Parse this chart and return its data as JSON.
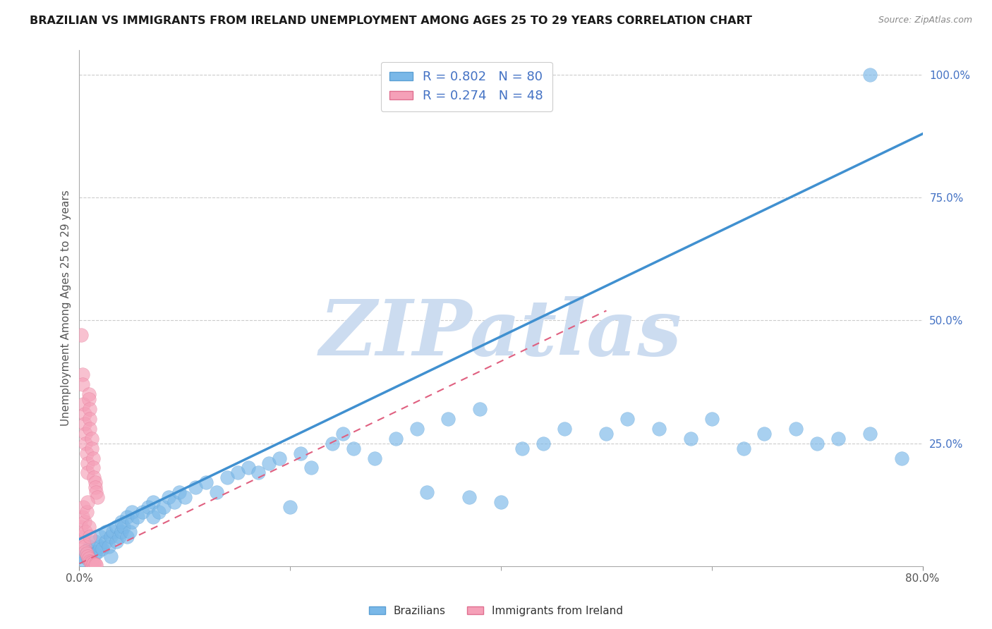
{
  "title": "BRAZILIAN VS IMMIGRANTS FROM IRELAND UNEMPLOYMENT AMONG AGES 25 TO 29 YEARS CORRELATION CHART",
  "source": "Source: ZipAtlas.com",
  "ylabel": "Unemployment Among Ages 25 to 29 years",
  "xlim": [
    0.0,
    0.8
  ],
  "ylim": [
    0.0,
    1.05
  ],
  "xtick_positions": [
    0.0,
    0.8
  ],
  "xtick_labels": [
    "0.0%",
    "80.0%"
  ],
  "xtick_minor_positions": [
    0.2,
    0.4,
    0.6
  ],
  "yticks_right": [
    0.25,
    0.5,
    0.75,
    1.0
  ],
  "ytick_labels_right": [
    "25.0%",
    "50.0%",
    "75.0%",
    "100.0%"
  ],
  "watermark": "ZIPatlas",
  "watermark_color": "#ccdcf0",
  "background_color": "#ffffff",
  "grid_color": "#cccccc",
  "series": [
    {
      "name": "Brazilians",
      "color": "#7ab8e8",
      "edge_color": "#5b9fd4",
      "R": 0.802,
      "N": 80,
      "trend_color": "#4090d0",
      "trend_style": "solid",
      "trend_x": [
        0.0,
        0.8
      ],
      "trend_y": [
        0.055,
        0.88
      ]
    },
    {
      "name": "Immigrants from Ireland",
      "color": "#f5a0b8",
      "edge_color": "#e07090",
      "R": 0.274,
      "N": 48,
      "trend_color": "#e06080",
      "trend_style": "dashed",
      "trend_x": [
        0.0,
        0.5
      ],
      "trend_y": [
        0.005,
        0.52
      ]
    }
  ],
  "blue_dots": [
    [
      0.003,
      0.02
    ],
    [
      0.005,
      0.01
    ],
    [
      0.007,
      0.03
    ],
    [
      0.008,
      0.015
    ],
    [
      0.01,
      0.02
    ],
    [
      0.01,
      0.04
    ],
    [
      0.012,
      0.03
    ],
    [
      0.015,
      0.025
    ],
    [
      0.015,
      0.05
    ],
    [
      0.018,
      0.03
    ],
    [
      0.02,
      0.04
    ],
    [
      0.02,
      0.06
    ],
    [
      0.022,
      0.035
    ],
    [
      0.025,
      0.05
    ],
    [
      0.025,
      0.07
    ],
    [
      0.028,
      0.04
    ],
    [
      0.03,
      0.06
    ],
    [
      0.03,
      0.02
    ],
    [
      0.032,
      0.07
    ],
    [
      0.035,
      0.05
    ],
    [
      0.035,
      0.08
    ],
    [
      0.038,
      0.06
    ],
    [
      0.04,
      0.07
    ],
    [
      0.04,
      0.09
    ],
    [
      0.042,
      0.08
    ],
    [
      0.045,
      0.06
    ],
    [
      0.045,
      0.1
    ],
    [
      0.048,
      0.07
    ],
    [
      0.05,
      0.09
    ],
    [
      0.05,
      0.11
    ],
    [
      0.055,
      0.1
    ],
    [
      0.06,
      0.11
    ],
    [
      0.065,
      0.12
    ],
    [
      0.07,
      0.1
    ],
    [
      0.07,
      0.13
    ],
    [
      0.075,
      0.11
    ],
    [
      0.08,
      0.12
    ],
    [
      0.085,
      0.14
    ],
    [
      0.09,
      0.13
    ],
    [
      0.095,
      0.15
    ],
    [
      0.1,
      0.14
    ],
    [
      0.11,
      0.16
    ],
    [
      0.12,
      0.17
    ],
    [
      0.13,
      0.15
    ],
    [
      0.14,
      0.18
    ],
    [
      0.15,
      0.19
    ],
    [
      0.16,
      0.2
    ],
    [
      0.17,
      0.19
    ],
    [
      0.18,
      0.21
    ],
    [
      0.19,
      0.22
    ],
    [
      0.2,
      0.12
    ],
    [
      0.21,
      0.23
    ],
    [
      0.22,
      0.2
    ],
    [
      0.24,
      0.25
    ],
    [
      0.25,
      0.27
    ],
    [
      0.26,
      0.24
    ],
    [
      0.28,
      0.22
    ],
    [
      0.3,
      0.26
    ],
    [
      0.32,
      0.28
    ],
    [
      0.33,
      0.15
    ],
    [
      0.35,
      0.3
    ],
    [
      0.37,
      0.14
    ],
    [
      0.38,
      0.32
    ],
    [
      0.4,
      0.13
    ],
    [
      0.42,
      0.24
    ],
    [
      0.44,
      0.25
    ],
    [
      0.46,
      0.28
    ],
    [
      0.5,
      0.27
    ],
    [
      0.52,
      0.3
    ],
    [
      0.55,
      0.28
    ],
    [
      0.58,
      0.26
    ],
    [
      0.6,
      0.3
    ],
    [
      0.63,
      0.24
    ],
    [
      0.65,
      0.27
    ],
    [
      0.68,
      0.28
    ],
    [
      0.7,
      0.25
    ],
    [
      0.72,
      0.26
    ],
    [
      0.75,
      0.27
    ],
    [
      0.78,
      0.22
    ],
    [
      0.75,
      1.0
    ]
  ],
  "pink_dots": [
    [
      0.002,
      0.47
    ],
    [
      0.003,
      0.39
    ],
    [
      0.003,
      0.37
    ],
    [
      0.004,
      0.33
    ],
    [
      0.005,
      0.31
    ],
    [
      0.005,
      0.29
    ],
    [
      0.006,
      0.27
    ],
    [
      0.006,
      0.25
    ],
    [
      0.007,
      0.23
    ],
    [
      0.008,
      0.21
    ],
    [
      0.008,
      0.19
    ],
    [
      0.009,
      0.35
    ],
    [
      0.009,
      0.34
    ],
    [
      0.01,
      0.32
    ],
    [
      0.01,
      0.3
    ],
    [
      0.01,
      0.28
    ],
    [
      0.012,
      0.26
    ],
    [
      0.012,
      0.24
    ],
    [
      0.013,
      0.22
    ],
    [
      0.013,
      0.2
    ],
    [
      0.014,
      0.18
    ],
    [
      0.015,
      0.17
    ],
    [
      0.015,
      0.16
    ],
    [
      0.016,
      0.15
    ],
    [
      0.017,
      0.14
    ],
    [
      0.003,
      0.06
    ],
    [
      0.004,
      0.05
    ],
    [
      0.005,
      0.04
    ],
    [
      0.006,
      0.03
    ],
    [
      0.007,
      0.025
    ],
    [
      0.008,
      0.02
    ],
    [
      0.009,
      0.015
    ],
    [
      0.01,
      0.01
    ],
    [
      0.011,
      0.008
    ],
    [
      0.012,
      0.007
    ],
    [
      0.013,
      0.006
    ],
    [
      0.014,
      0.005
    ],
    [
      0.015,
      0.004
    ],
    [
      0.016,
      0.003
    ],
    [
      0.002,
      0.08
    ],
    [
      0.003,
      0.1
    ],
    [
      0.004,
      0.12
    ],
    [
      0.005,
      0.09
    ],
    [
      0.006,
      0.07
    ],
    [
      0.007,
      0.11
    ],
    [
      0.008,
      0.13
    ],
    [
      0.009,
      0.08
    ],
    [
      0.01,
      0.06
    ]
  ]
}
